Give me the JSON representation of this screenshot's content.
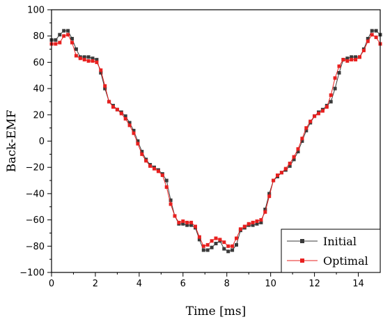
{
  "chart_data": {
    "type": "line",
    "title": "",
    "xlabel": "Time [ms]",
    "ylabel": "Back-EMF",
    "xlim": [
      0,
      15
    ],
    "ylim": [
      -100,
      100
    ],
    "x_ticks": [
      "0",
      "2",
      "4",
      "6",
      "8",
      "10",
      "12",
      "14"
    ],
    "y_ticks": [
      "100",
      "80",
      "60",
      "40",
      "20",
      "0",
      "−20",
      "−40",
      "−60",
      "−80",
      "−100"
    ],
    "grid": false,
    "legend_position": "bottom-right",
    "series": [
      {
        "name": "Initial",
        "color": "#3a3a3a",
        "marker": "square",
        "x": [
          0,
          0.1875,
          0.375,
          0.5625,
          0.75,
          0.9375,
          1.125,
          1.3125,
          1.5,
          1.6875,
          1.875,
          2.0625,
          2.25,
          2.4375,
          2.625,
          2.8125,
          3.0,
          3.1875,
          3.375,
          3.5625,
          3.75,
          3.9375,
          4.125,
          4.3125,
          4.5,
          4.6875,
          4.875,
          5.0625,
          5.25,
          5.4375,
          5.625,
          5.8125,
          6.0,
          6.1875,
          6.375,
          6.5625,
          6.75,
          6.9375,
          7.125,
          7.3125,
          7.5,
          7.6875,
          7.875,
          8.0625,
          8.25,
          8.4375,
          8.625,
          8.8125,
          9.0,
          9.1875,
          9.375,
          9.5625,
          9.75,
          9.9375,
          10.125,
          10.3125,
          10.5,
          10.6875,
          10.875,
          11.0625,
          11.25,
          11.4375,
          11.625,
          11.8125,
          12.0,
          12.1875,
          12.375,
          12.5625,
          12.75,
          12.9375,
          13.125,
          13.3125,
          13.5,
          13.6875,
          13.875,
          14.0625,
          14.25,
          14.4375,
          14.625,
          14.8125,
          15.0
        ],
        "y": [
          77,
          77,
          81,
          84,
          84,
          78,
          70,
          64,
          64,
          64,
          63,
          62,
          52,
          40,
          30,
          27,
          24,
          22,
          19,
          14,
          8,
          0,
          -8,
          -14,
          -18,
          -20,
          -22,
          -25,
          -30,
          -45,
          -57,
          -63,
          -63,
          -64,
          -64,
          -66,
          -75,
          -83,
          -83,
          -81,
          -78,
          -76,
          -82,
          -84,
          -83,
          -79,
          -68,
          -66,
          -64,
          -64,
          -63,
          -62,
          -52,
          -40,
          -30,
          -27,
          -24,
          -22,
          -19,
          -14,
          -8,
          0,
          8,
          14,
          19,
          22,
          24,
          27,
          30,
          40,
          52,
          62,
          63,
          64,
          64,
          64,
          70,
          78,
          84,
          84,
          81
        ]
      },
      {
        "name": "Optimal",
        "color": "#e8201f",
        "marker": "square",
        "x": [
          0,
          0.1875,
          0.375,
          0.5625,
          0.75,
          0.9375,
          1.125,
          1.3125,
          1.5,
          1.6875,
          1.875,
          2.0625,
          2.25,
          2.4375,
          2.625,
          2.8125,
          3.0,
          3.1875,
          3.375,
          3.5625,
          3.75,
          3.9375,
          4.125,
          4.3125,
          4.5,
          4.6875,
          4.875,
          5.0625,
          5.25,
          5.4375,
          5.625,
          5.8125,
          6.0,
          6.1875,
          6.375,
          6.5625,
          6.75,
          6.9375,
          7.125,
          7.3125,
          7.5,
          7.6875,
          7.875,
          8.0625,
          8.25,
          8.4375,
          8.625,
          8.8125,
          9.0,
          9.1875,
          9.375,
          9.5625,
          9.75,
          9.9375,
          10.125,
          10.3125,
          10.5,
          10.6875,
          10.875,
          11.0625,
          11.25,
          11.4375,
          11.625,
          11.8125,
          12.0,
          12.1875,
          12.375,
          12.5625,
          12.75,
          12.9375,
          13.125,
          13.3125,
          13.5,
          13.6875,
          13.875,
          14.0625,
          14.25,
          14.4375,
          14.625,
          14.8125,
          15.0
        ],
        "y": [
          74,
          74,
          75,
          80,
          81,
          75,
          65,
          63,
          62,
          61,
          61,
          60,
          54,
          42,
          30,
          26,
          24,
          21,
          17,
          12,
          6,
          -2,
          -10,
          -15,
          -19,
          -21,
          -23,
          -26,
          -35,
          -48,
          -57,
          -62,
          -61,
          -62,
          -62,
          -65,
          -73,
          -80,
          -79,
          -76,
          -74,
          -75,
          -77,
          -80,
          -80,
          -74,
          -67,
          -65,
          -63,
          -62,
          -61,
          -60,
          -54,
          -42,
          -30,
          -26,
          -24,
          -21,
          -17,
          -12,
          -6,
          2,
          10,
          15,
          19,
          21,
          23,
          26,
          35,
          48,
          57,
          62,
          61,
          62,
          62,
          64,
          69,
          76,
          81,
          79,
          74
        ]
      }
    ]
  }
}
